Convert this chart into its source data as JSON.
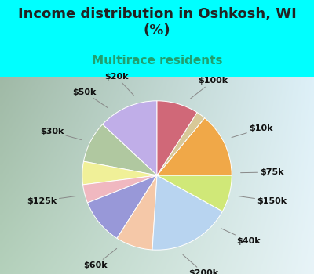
{
  "title": "Income distribution in Oshkosh, WI\n(%)",
  "subtitle": "Multirace residents",
  "bg_color": "#00FFFF",
  "chart_bg_left": "#c8e8d0",
  "chart_bg_right": "#e8f4f8",
  "labels": [
    "$100k",
    "$10k",
    "$75k",
    "$150k",
    "$40k",
    "$200k",
    "$60k",
    "$125k",
    "$30k",
    "$50k",
    "$20k"
  ],
  "sizes": [
    13,
    9,
    5,
    4,
    10,
    8,
    18,
    8,
    14,
    2,
    9
  ],
  "colors": [
    "#c0aee8",
    "#b0c8a0",
    "#f0f098",
    "#f0b8c0",
    "#9898d8",
    "#f5c8a8",
    "#b8d4f0",
    "#d0e878",
    "#f0a848",
    "#d8c898",
    "#d06878"
  ],
  "startangle": 90,
  "title_fontsize": 13,
  "subtitle_fontsize": 11,
  "label_fontsize": 8
}
